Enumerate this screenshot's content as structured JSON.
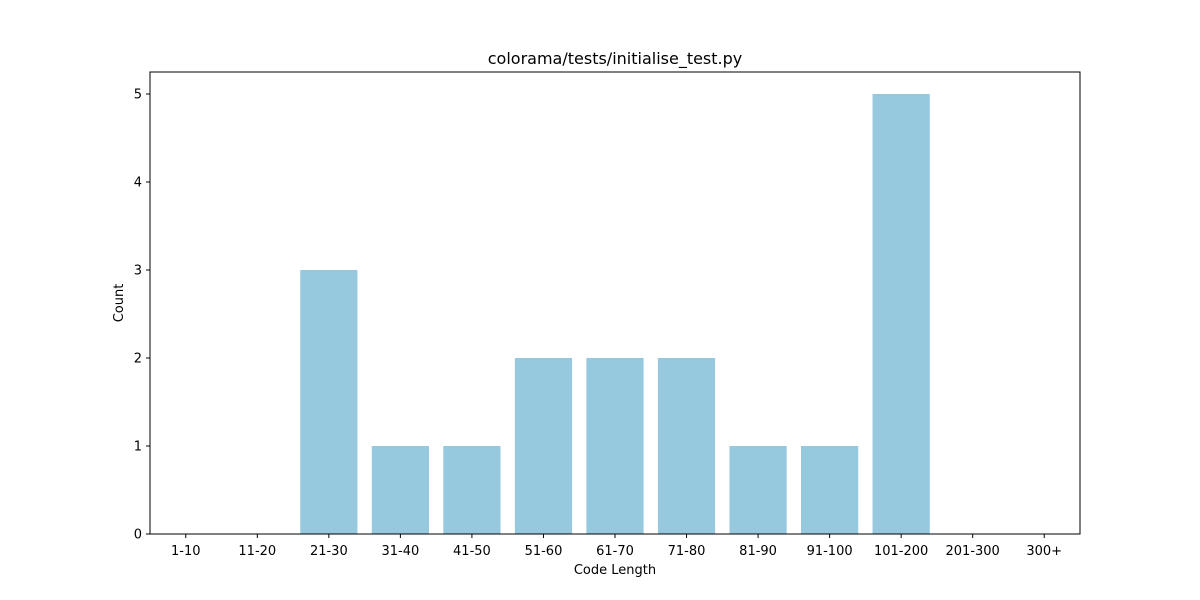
{
  "chart_data": {
    "type": "bar",
    "title": "colorama/tests/initialise_test.py",
    "xlabel": "Code Length",
    "ylabel": "Count",
    "categories": [
      "1-10",
      "11-20",
      "21-30",
      "31-40",
      "41-50",
      "51-60",
      "61-70",
      "71-80",
      "81-90",
      "91-100",
      "101-200",
      "201-300",
      "300+"
    ],
    "values": [
      0,
      0,
      3,
      1,
      1,
      2,
      2,
      2,
      1,
      1,
      5,
      0,
      0
    ],
    "ylim": [
      0,
      5.25
    ],
    "yticks": [
      0,
      1,
      2,
      3,
      4,
      5
    ],
    "bar_color": "#96c9dd",
    "grid": false,
    "legend": "none"
  }
}
